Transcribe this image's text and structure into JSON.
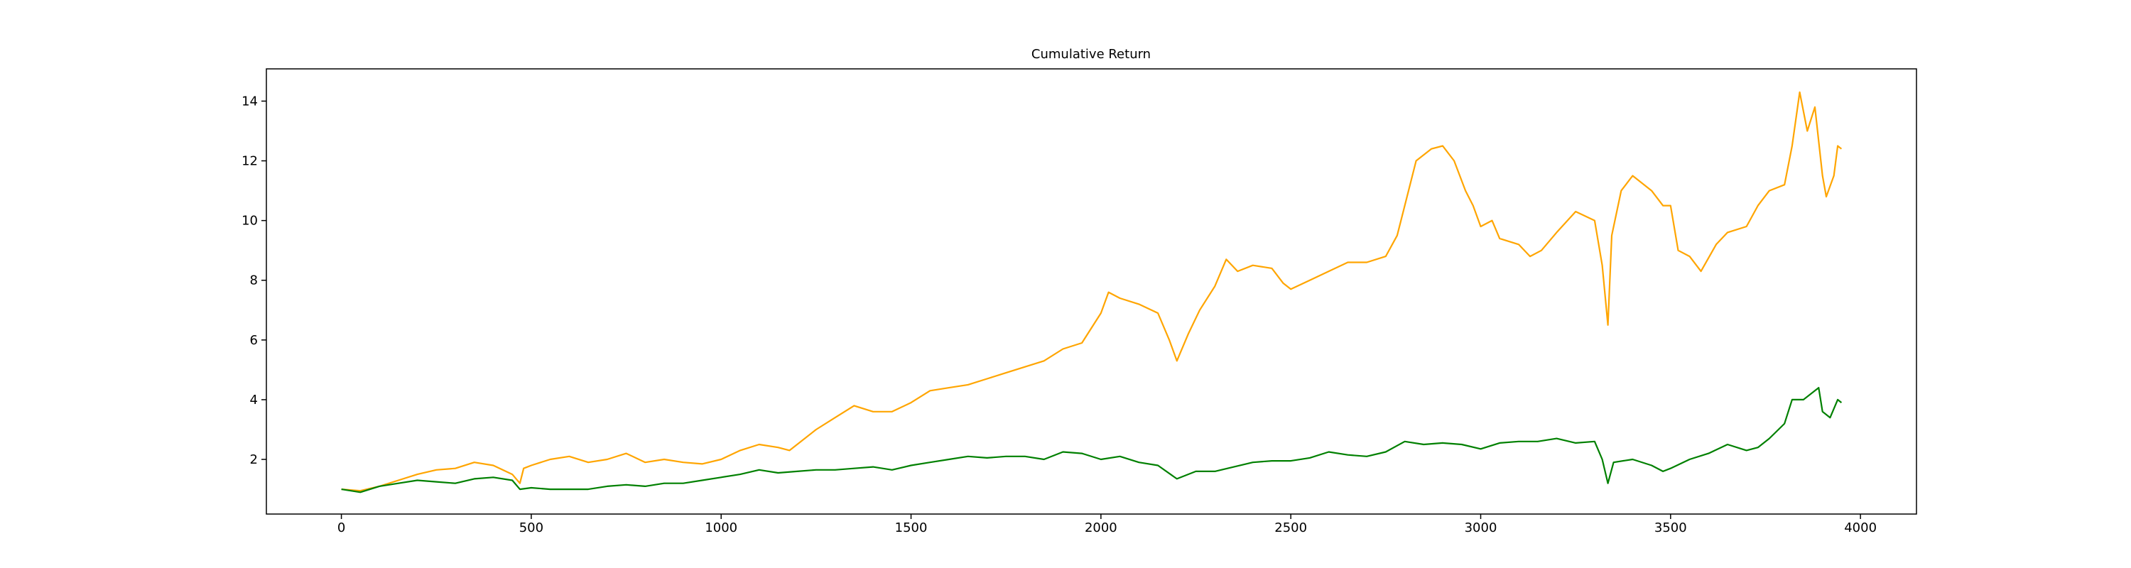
{
  "chart_data": {
    "type": "line",
    "title": "Cumulative Return",
    "xlim": [
      -197.5,
      4147.5
    ],
    "ylim": [
      0.17,
      15.08
    ],
    "xticks": [
      0,
      500,
      1000,
      1500,
      2000,
      2500,
      3000,
      3500,
      4000
    ],
    "yticks": [
      2,
      4,
      6,
      8,
      10,
      12,
      14
    ],
    "grid": false,
    "series": [
      {
        "color": "#ffa500",
        "x": [
          0,
          50,
          100,
          150,
          200,
          250,
          300,
          350,
          400,
          450,
          470,
          480,
          500,
          550,
          600,
          650,
          700,
          750,
          800,
          850,
          900,
          950,
          1000,
          1050,
          1100,
          1150,
          1180,
          1200,
          1250,
          1300,
          1350,
          1400,
          1450,
          1500,
          1550,
          1600,
          1650,
          1700,
          1750,
          1800,
          1850,
          1900,
          1950,
          2000,
          2020,
          2050,
          2100,
          2150,
          2180,
          2200,
          2230,
          2260,
          2300,
          2330,
          2360,
          2400,
          2450,
          2480,
          2500,
          2550,
          2600,
          2650,
          2700,
          2750,
          2780,
          2800,
          2830,
          2870,
          2900,
          2930,
          2960,
          2980,
          3000,
          3030,
          3050,
          3100,
          3130,
          3160,
          3200,
          3250,
          3300,
          3320,
          3335,
          3345,
          3370,
          3400,
          3450,
          3480,
          3500,
          3520,
          3550,
          3580,
          3620,
          3650,
          3700,
          3730,
          3760,
          3800,
          3820,
          3840,
          3860,
          3880,
          3900,
          3910,
          3930,
          3940,
          3950
        ],
        "values": [
          1.0,
          0.95,
          1.1,
          1.3,
          1.5,
          1.65,
          1.7,
          1.9,
          1.8,
          1.5,
          1.2,
          1.7,
          1.8,
          2.0,
          2.1,
          1.9,
          2.0,
          2.2,
          1.9,
          2.0,
          1.9,
          1.85,
          2.0,
          2.3,
          2.5,
          2.4,
          2.3,
          2.5,
          3.0,
          3.4,
          3.8,
          3.6,
          3.6,
          3.9,
          4.3,
          4.4,
          4.5,
          4.7,
          4.9,
          5.1,
          5.3,
          5.7,
          5.9,
          6.9,
          7.6,
          7.4,
          7.2,
          6.9,
          6.0,
          5.3,
          6.2,
          7.0,
          7.8,
          8.7,
          8.3,
          8.5,
          8.4,
          7.9,
          7.7,
          8.0,
          8.3,
          8.6,
          8.6,
          8.8,
          9.5,
          10.5,
          12.0,
          12.4,
          12.5,
          12.0,
          11.0,
          10.5,
          9.8,
          10.0,
          9.4,
          9.2,
          8.8,
          9.0,
          9.6,
          10.3,
          10.0,
          8.5,
          6.5,
          9.5,
          11.0,
          11.5,
          11.0,
          10.5,
          10.5,
          9.0,
          8.8,
          8.3,
          9.2,
          9.6,
          9.8,
          10.5,
          11.0,
          11.2,
          12.5,
          14.3,
          13.0,
          13.8,
          11.5,
          10.8,
          11.5,
          12.5,
          12.4
        ]
      },
      {
        "color": "#008000",
        "x": [
          0,
          50,
          100,
          150,
          200,
          250,
          300,
          350,
          400,
          450,
          470,
          500,
          550,
          600,
          650,
          700,
          750,
          800,
          850,
          900,
          950,
          1000,
          1050,
          1100,
          1150,
          1200,
          1250,
          1300,
          1350,
          1400,
          1450,
          1500,
          1550,
          1600,
          1650,
          1700,
          1750,
          1800,
          1850,
          1900,
          1950,
          2000,
          2050,
          2100,
          2150,
          2200,
          2250,
          2300,
          2350,
          2400,
          2450,
          2500,
          2550,
          2600,
          2650,
          2700,
          2750,
          2800,
          2850,
          2900,
          2950,
          3000,
          3050,
          3100,
          3150,
          3200,
          3250,
          3300,
          3320,
          3335,
          3350,
          3400,
          3450,
          3480,
          3500,
          3550,
          3600,
          3650,
          3700,
          3730,
          3760,
          3800,
          3820,
          3850,
          3880,
          3890,
          3900,
          3920,
          3940,
          3950
        ],
        "values": [
          1.0,
          0.9,
          1.1,
          1.2,
          1.3,
          1.25,
          1.2,
          1.35,
          1.4,
          1.3,
          1.0,
          1.05,
          1.0,
          1.0,
          1.0,
          1.1,
          1.15,
          1.1,
          1.2,
          1.2,
          1.3,
          1.4,
          1.5,
          1.65,
          1.55,
          1.6,
          1.65,
          1.65,
          1.7,
          1.75,
          1.65,
          1.8,
          1.9,
          2.0,
          2.1,
          2.05,
          2.1,
          2.1,
          2.0,
          2.25,
          2.2,
          2.0,
          2.1,
          1.9,
          1.8,
          1.35,
          1.6,
          1.6,
          1.75,
          1.9,
          1.95,
          1.95,
          2.05,
          2.25,
          2.15,
          2.1,
          2.25,
          2.6,
          2.5,
          2.55,
          2.5,
          2.35,
          2.55,
          2.6,
          2.6,
          2.7,
          2.55,
          2.6,
          2.0,
          1.2,
          1.9,
          2.0,
          1.8,
          1.6,
          1.7,
          2.0,
          2.2,
          2.5,
          2.3,
          2.4,
          2.7,
          3.2,
          4.0,
          4.0,
          4.3,
          4.4,
          3.6,
          3.4,
          4.0,
          3.9
        ]
      }
    ]
  }
}
